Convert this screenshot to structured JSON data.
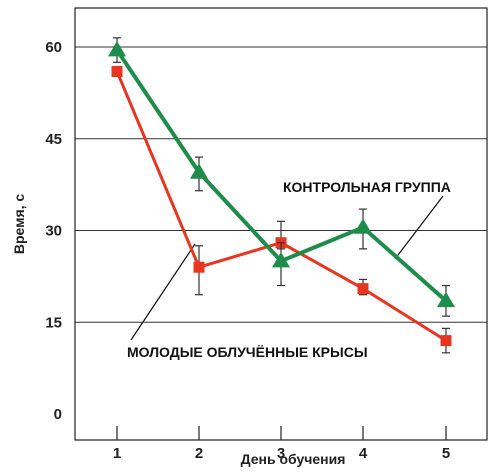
{
  "chart_data": {
    "type": "line",
    "xlabel": "День обучения",
    "ylabel": "Время, с",
    "categories": [
      1,
      2,
      3,
      4,
      5
    ],
    "ylim": [
      0,
      65
    ],
    "yticks": [
      0,
      15,
      30,
      45,
      60
    ],
    "grid": "horizontal",
    "series": [
      {
        "name": "КОНТРОЛЬНАЯ ГРУППА",
        "color": "#1e8c4a",
        "marker": "triangle",
        "values": [
          59.5,
          39.5,
          25.0,
          30.5,
          18.5
        ],
        "error_low": [
          57.5,
          36.5,
          21.0,
          27.0,
          16.0
        ],
        "error_high": [
          61.5,
          42.0,
          28.0,
          33.5,
          21.0
        ]
      },
      {
        "name": "МОЛОДЫЕ ОБЛУЧЁННЫЕ КРЫСЫ",
        "color": "#e8351f",
        "marker": "square",
        "values": [
          56.0,
          24.0,
          28.0,
          20.5,
          12.0
        ],
        "error_low": [
          56.0,
          19.5,
          27.0,
          19.5,
          10.0
        ],
        "error_high": [
          56.0,
          27.5,
          31.5,
          22.0,
          14.0
        ]
      }
    ],
    "annotations": [
      "КОНТРОЛЬНАЯ ГРУППА",
      "МОЛОДЫЕ ОБЛУЧЁННЫЕ КРЫСЫ"
    ]
  }
}
